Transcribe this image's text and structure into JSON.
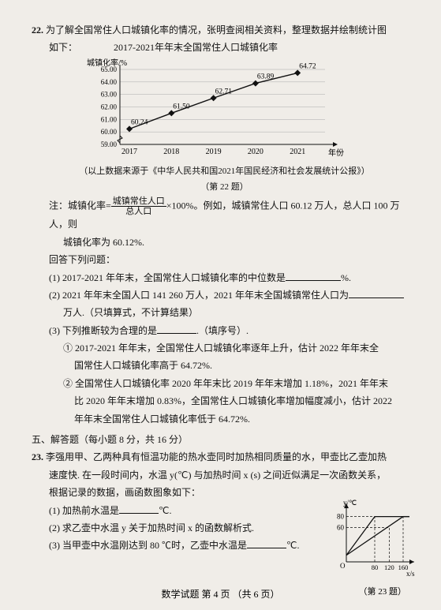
{
  "q22": {
    "number": "22.",
    "intro_line1": "为了解全国常住人口城镇化率的情况，张明查阅相关资料，整理数据并绘制统计图",
    "intro_line2": "如下：",
    "chart_title": "2017-2021年年末全国常住人口城镇化率",
    "chart": {
      "ylabel": "城镇化率/%",
      "xlabel": "年份",
      "years": [
        "2017",
        "2018",
        "2019",
        "2020",
        "2021"
      ],
      "values": [
        60.24,
        61.5,
        62.71,
        63.89,
        64.72
      ],
      "yticks": [
        59.0,
        60.0,
        61.0,
        62.0,
        63.0,
        64.0,
        65.0
      ],
      "line_color": "#111111",
      "grid_color": "#aaaaaa",
      "bg_color": "#f0ede8",
      "marker": "diamond",
      "marker_size": 4
    },
    "source": "（以上数据来源于《中华人民共和国2021年国民经济和社会发展统计公报》）",
    "fig_label": "（第 22 题）",
    "note_prefix": "注：城镇化率=",
    "frac_top": "城镇常住人口",
    "frac_bot": "总人口",
    "note_suffix": "×100%。例如，城镇常住人口 60.12 万人，总人口 100 万人，则",
    "note_line2": "城镇化率为 60.12%.",
    "answer_head": "回答下列问题：",
    "p1": "(1) 2017-2021 年年末，全国常住人口城镇化率的中位数是",
    "p1_unit": "%.",
    "p2_a": "(2) 2021 年年末全国人口 141 260 万人，2021 年年末全国城镇常住人口为",
    "p2_b": "万人.（只填算式，不计算结果）",
    "p3": "(3) 下列推断较为合理的是",
    "p3_suffix": ".（填序号）.",
    "p3_1a": "① 2017-2021 年年末，全国常住人口城镇化率逐年上升，估计 2022 年年末全",
    "p3_1b": "国常住人口城镇化率高于 64.72%.",
    "p3_2a": "② 全国常住人口城镇化率 2020 年年末比 2019 年年末增加 1.18%，2021 年年末",
    "p3_2b": "比 2020 年年末增加 0.83%，全国常住人口城镇化率增加幅度减小，估计 2022",
    "p3_2c": "年年末全国常住人口城镇化率低于 64.72%."
  },
  "section5": "五、解答题（每小题 8 分，共 16 分）",
  "q23": {
    "number": "23.",
    "l1": "李强用甲、乙两种具有恒温功能的热水壶同时加热相同质量的水，甲壶比乙壶加热",
    "l2": "速度快. 在一段时间内，水温 y(℃) 与加热时间 x (s) 之间近似满足一次函数关系，",
    "l3": "根据记录的数据，画函数图象如下：",
    "p1": "(1) 加热前水温是",
    "p1_unit": "℃.",
    "p2": "(2) 求乙壶中水温 y 关于加热时间 x 的函数解析式.",
    "p3": "(3) 当甲壶中水温刚达到 80 ℃时，乙壶中水温是",
    "p3_unit": "℃.",
    "mini": {
      "y_max": 80,
      "y_mid": 60,
      "x_ticks": [
        "80",
        "120",
        "160"
      ],
      "ylabel": "y/℃",
      "xlabel": "x/s",
      "origin": "O",
      "fig_label": "（第 23 题）",
      "line_color": "#111111",
      "dash_array": "3,2"
    }
  },
  "footer": "数学试题  第 4 页 （共 6 页）"
}
